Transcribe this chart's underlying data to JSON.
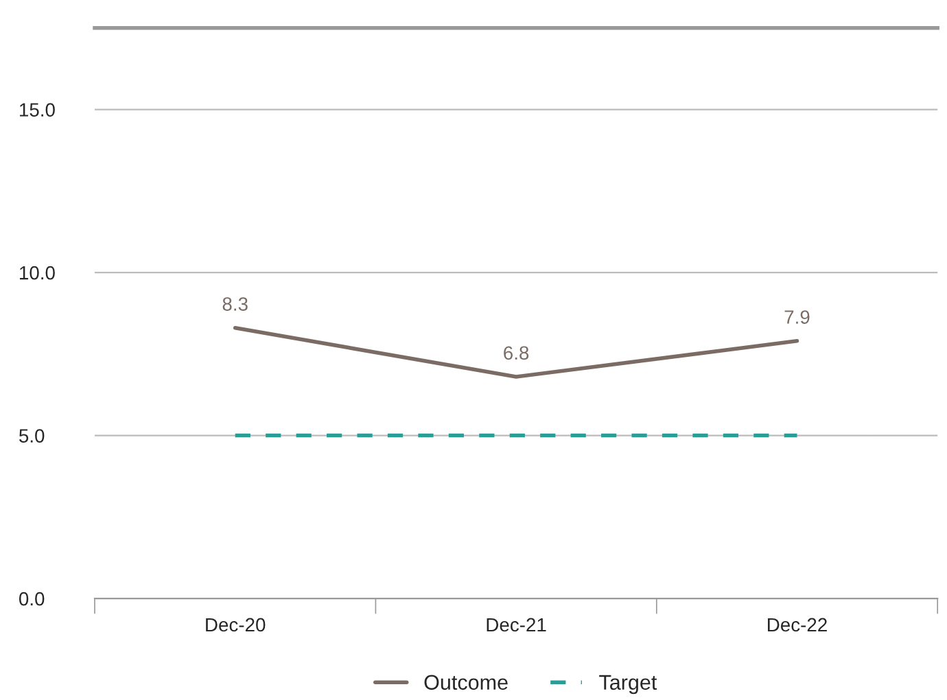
{
  "chart_data": {
    "type": "line",
    "categories": [
      "Dec-20",
      "Dec-21",
      "Dec-22"
    ],
    "series": [
      {
        "name": "Outcome",
        "color": "#7a6c64",
        "values": [
          8.3,
          6.8,
          7.9
        ],
        "value_labels": [
          "8.3",
          "6.8",
          "7.9"
        ],
        "line_style": "solid"
      },
      {
        "name": "Target",
        "color": "#2a9d96",
        "values": [
          5.0,
          5.0,
          5.0
        ],
        "line_style": "dashed"
      }
    ],
    "ylim": [
      0,
      17.5
    ],
    "yticks": [
      {
        "value": 0,
        "label": "0.0"
      },
      {
        "value": 5,
        "label": "5.0"
      },
      {
        "value": 10,
        "label": "10.0"
      },
      {
        "value": 15,
        "label": "15.0"
      }
    ],
    "grid": "y",
    "legend": "bottom",
    "marker": "none"
  }
}
